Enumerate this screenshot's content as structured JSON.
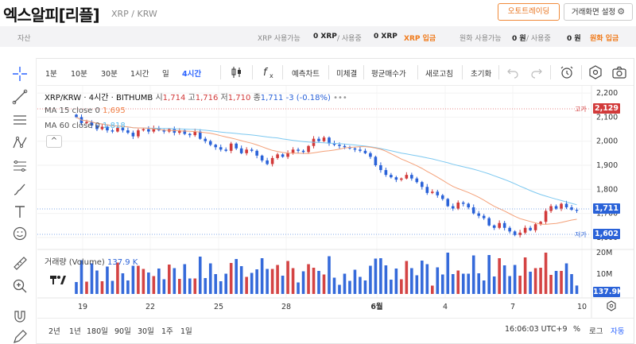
{
  "header": {
    "title": "엑스알피[리플]",
    "pair": "XRP / KRW",
    "auto_trade_button": "오토트레이딩",
    "settings_button": "거래화면 설정"
  },
  "asset_bar": {
    "label": "자산",
    "xrp_available_label": "XRP 사용가능",
    "xrp_available_value": "0 XRP",
    "xrp_in_use_label": "/ 사용중",
    "xrp_in_use_value": "0 XRP",
    "xrp_deposit": "XRP 입금",
    "krw_available_label": "원화 사용가능",
    "krw_available_value": "0 원",
    "krw_in_use_label": "/ 사용중",
    "krw_in_use_value": "0 원",
    "krw_deposit": "원화 입금"
  },
  "toolbar": {
    "intervals": [
      "1분",
      "10분",
      "30분",
      "1시간",
      "일",
      "4시간"
    ],
    "active_interval": "4시간",
    "items": [
      "예측차트",
      "미체결",
      "평균매수가",
      "새로고침",
      "초기화"
    ]
  },
  "legend": {
    "symbol": "XRP/KRW · 4시간 · BITHUMB",
    "open_label": "시",
    "open": "1,714",
    "high_label": "고",
    "high": "1,716",
    "low_label": "저",
    "low": "1,710",
    "close_label": "종",
    "close": "1,711",
    "change": "-3 (-0.18%)",
    "ma15_label": "MA 15 close 0",
    "ma15_value": "1,695",
    "ma60_label": "MA 60 close 0",
    "ma60_value": "1,818",
    "volume_label": "거래량 (Volume)",
    "volume_value": "137.9 K"
  },
  "price_scale": {
    "ticks": [
      "2,200",
      "2,100",
      "2,000",
      "1,900",
      "1,800",
      "1,700",
      "1,600"
    ],
    "high_tag_label": "고가",
    "high_tag": "2,129",
    "current_tag": "1,711",
    "low_tag_label": "저가",
    "low_tag": "1,602",
    "volume_ticks": [
      "20M",
      "10M"
    ],
    "volume_tag": "137.9K"
  },
  "time_axis": [
    "19",
    "22",
    "25",
    "28",
    "6월",
    "4",
    "7",
    "10"
  ],
  "bottom_bar": {
    "ranges": [
      "2년",
      "1년",
      "180일",
      "90일",
      "30일",
      "1주",
      "1일"
    ],
    "clock": "16:06:03 UTC+9",
    "percent": "%",
    "log": "로그",
    "auto": "자동"
  },
  "colors": {
    "up": "#d23a3a",
    "down": "#2a62d8",
    "ma15": "#f0824a",
    "ma60": "#55b8ea",
    "accent": "#2962ff",
    "brand_orange": "#f07a1a"
  },
  "chart_data": {
    "type": "candlestick",
    "x": [
      "19",
      "22",
      "25",
      "28",
      "6월",
      "4",
      "7",
      "10"
    ],
    "ylim": [
      1570,
      2230
    ],
    "closes": [
      2100,
      2075,
      2080,
      2065,
      2050,
      2060,
      2045,
      2040,
      2055,
      2045,
      2035,
      2020,
      2045,
      2050,
      2040,
      2055,
      2045,
      2040,
      2050,
      2035,
      2045,
      2030,
      2025,
      2040,
      2010,
      2000,
      1985,
      1975,
      1965,
      1960,
      1990,
      1970,
      1950,
      1965,
      1960,
      1940,
      1920,
      1905,
      1930,
      1945,
      1935,
      1950,
      1965,
      1960,
      1955,
      1980,
      2010,
      2000,
      2015,
      1990,
      1985,
      1980,
      1975,
      1970,
      1965,
      1960,
      1950,
      1935,
      1900,
      1880,
      1860,
      1850,
      1840,
      1845,
      1860,
      1845,
      1830,
      1810,
      1785,
      1790,
      1775,
      1760,
      1730,
      1720,
      1745,
      1740,
      1725,
      1700,
      1690,
      1680,
      1650,
      1640,
      1660,
      1640,
      1625,
      1610,
      1620,
      1640,
      1630,
      1655,
      1665,
      1710,
      1730,
      1720,
      1740,
      1725,
      1715,
      1711
    ],
    "ma15_last": 1695,
    "ma60_last": 1818,
    "high_marker": 2129,
    "low_marker": 1602,
    "current_price": 1711,
    "volume_ticks": [
      "20M",
      "10M"
    ],
    "volume_last": "137.9K"
  }
}
